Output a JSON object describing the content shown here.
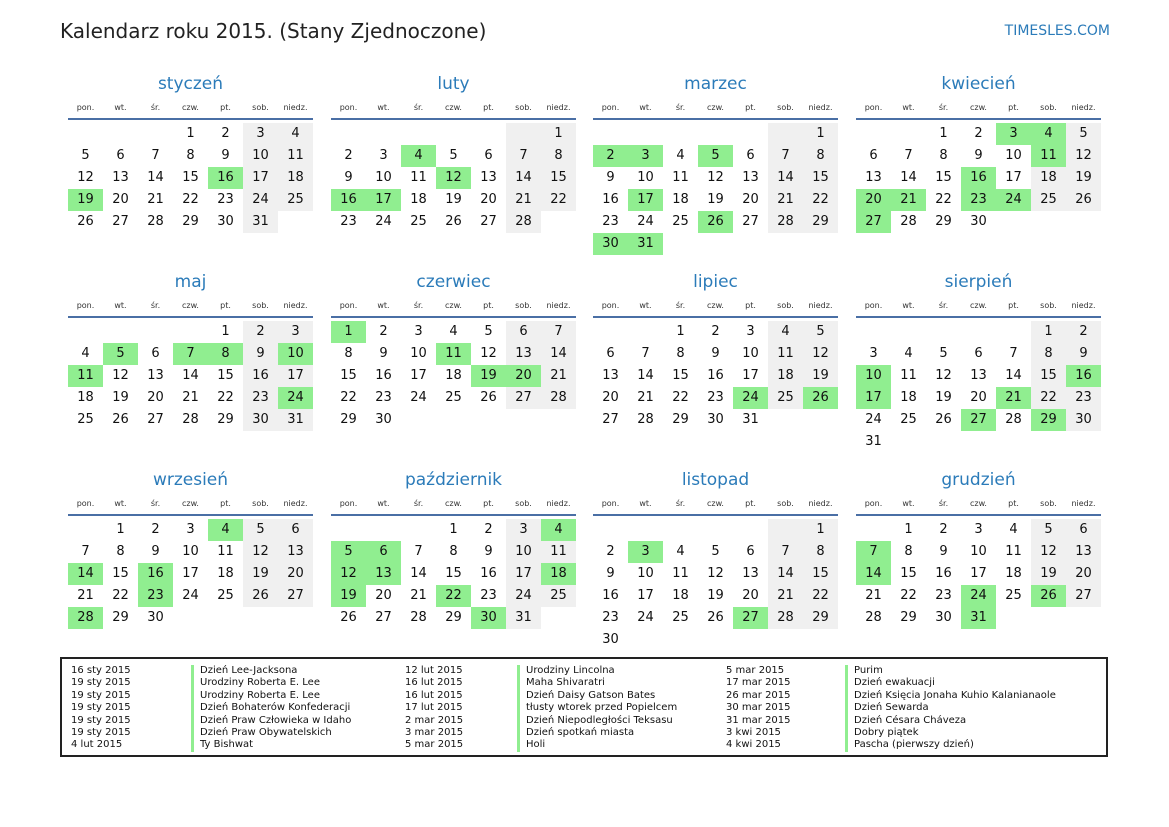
{
  "title": "Kalendarz roku 2015. (Stany Zjednoczone)",
  "site": "TIMESLES.COM",
  "weekdays": [
    "pon.",
    "wt.",
    "śr.",
    "czw.",
    "pt.",
    "sob.",
    "niedz."
  ],
  "colors": {
    "accent": "#2b7bb9",
    "holiday": "#90ee90",
    "weekend": "#f0f0f0"
  },
  "months": [
    {
      "name": "styczeń",
      "offset": 3,
      "days": 31,
      "holidays": [
        16,
        19
      ]
    },
    {
      "name": "luty",
      "offset": 6,
      "days": 28,
      "holidays": [
        4,
        12,
        16,
        17
      ]
    },
    {
      "name": "marzec",
      "offset": 6,
      "days": 31,
      "holidays": [
        2,
        3,
        5,
        17,
        26,
        30,
        31
      ]
    },
    {
      "name": "kwiecień",
      "offset": 2,
      "days": 30,
      "holidays": [
        3,
        4,
        11,
        16,
        20,
        21,
        23,
        24,
        27
      ]
    },
    {
      "name": "maj",
      "offset": 4,
      "days": 31,
      "holidays": [
        5,
        7,
        8,
        10,
        11,
        24
      ]
    },
    {
      "name": "czerwiec",
      "offset": 0,
      "days": 30,
      "holidays": [
        1,
        11,
        19,
        20
      ]
    },
    {
      "name": "lipiec",
      "offset": 2,
      "days": 31,
      "holidays": [
        24,
        26
      ]
    },
    {
      "name": "sierpień",
      "offset": 5,
      "days": 31,
      "holidays": [
        10,
        16,
        17,
        21,
        27,
        29
      ]
    },
    {
      "name": "wrzesień",
      "offset": 1,
      "days": 30,
      "holidays": [
        4,
        14,
        16,
        23,
        28
      ]
    },
    {
      "name": "październik",
      "offset": 3,
      "days": 31,
      "holidays": [
        4,
        5,
        6,
        12,
        13,
        18,
        19,
        22,
        30
      ]
    },
    {
      "name": "listopad",
      "offset": 6,
      "days": 30,
      "holidays": [
        3,
        27
      ]
    },
    {
      "name": "grudzień",
      "offset": 1,
      "days": 31,
      "holidays": [
        7,
        14,
        24,
        26,
        31
      ]
    }
  ],
  "holiday_list": [
    [
      {
        "date": "16 sty 2015",
        "name": "Dzień Lee-Jacksona"
      },
      {
        "date": "19 sty 2015",
        "name": "Urodziny Roberta E. Lee"
      },
      {
        "date": "19 sty 2015",
        "name": "Urodziny Roberta E. Lee"
      },
      {
        "date": "19 sty 2015",
        "name": "Dzień Bohaterów Konfederacji"
      },
      {
        "date": "19 sty 2015",
        "name": "Dzień Praw Człowieka w Idaho"
      },
      {
        "date": "19 sty 2015",
        "name": "Dzień Praw Obywatelskich"
      },
      {
        "date": "4 lut 2015",
        "name": "Ty Bishwat"
      }
    ],
    [
      {
        "date": "12 lut 2015",
        "name": "Urodziny Lincolna"
      },
      {
        "date": "16 lut 2015",
        "name": "Maha Shivaratri"
      },
      {
        "date": "16 lut 2015",
        "name": "Dzień Daisy Gatson Bates"
      },
      {
        "date": "17 lut 2015",
        "name": "tłusty wtorek przed Popielcem"
      },
      {
        "date": "2 mar 2015",
        "name": "Dzień Niepodległości Teksasu"
      },
      {
        "date": "3 mar 2015",
        "name": "Dzień spotkań miasta"
      },
      {
        "date": "5 mar 2015",
        "name": "Holi"
      }
    ],
    [
      {
        "date": "5 mar 2015",
        "name": "Purim"
      },
      {
        "date": "17 mar 2015",
        "name": "Dzień ewakuacji"
      },
      {
        "date": "26 mar 2015",
        "name": "Dzień Księcia Jonaha Kuhio Kalanianaole"
      },
      {
        "date": "30 mar 2015",
        "name": "Dzień Sewarda"
      },
      {
        "date": "31 mar 2015",
        "name": "Dzień Césara Cháveza"
      },
      {
        "date": "3 kwi 2015",
        "name": "Dobry piątek"
      },
      {
        "date": "4 kwi 2015",
        "name": "Pascha (pierwszy dzień)"
      }
    ]
  ]
}
